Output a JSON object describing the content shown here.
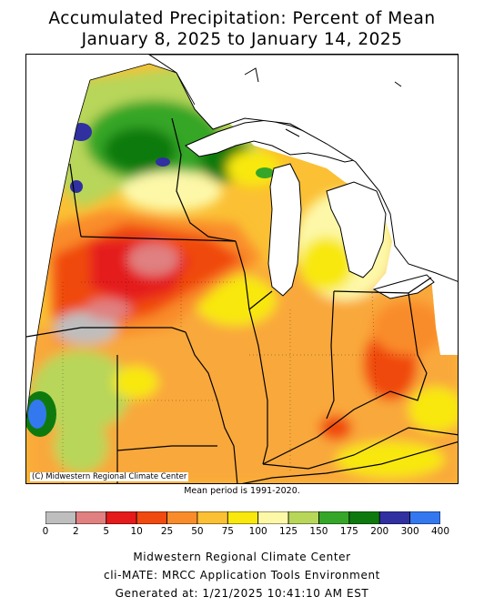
{
  "title": {
    "line1": "Accumulated Precipitation: Percent of Mean",
    "line2": "January 8, 2025 to January 14, 2025"
  },
  "map": {
    "copyright": "(C) Midwestern Regional Climate Center",
    "regions": [
      "MN",
      "WI",
      "MI",
      "IA",
      "IL",
      "IN",
      "OH",
      "MO",
      "KY"
    ]
  },
  "mean_period": "Mean period is 1991-2020.",
  "legend": {
    "breaks": [
      "0",
      "2",
      "5",
      "10",
      "25",
      "50",
      "75",
      "100",
      "125",
      "150",
      "175",
      "200",
      "300",
      "400"
    ],
    "colors": [
      "#bebebe",
      "#e08080",
      "#e51a1a",
      "#f04a10",
      "#f98c2a",
      "#fbc034",
      "#f8e80e",
      "#fdf8a8",
      "#b8d65a",
      "#36a628",
      "#0e7a0e",
      "#3030a0",
      "#3478f0",
      "#84c8fa"
    ]
  },
  "footer": {
    "line1": "Midwestern Regional Climate Center",
    "line2": "cli-MATE: MRCC Application Tools Environment",
    "line3": "Generated at: 1/21/2025 10:41:10 AM EST"
  }
}
